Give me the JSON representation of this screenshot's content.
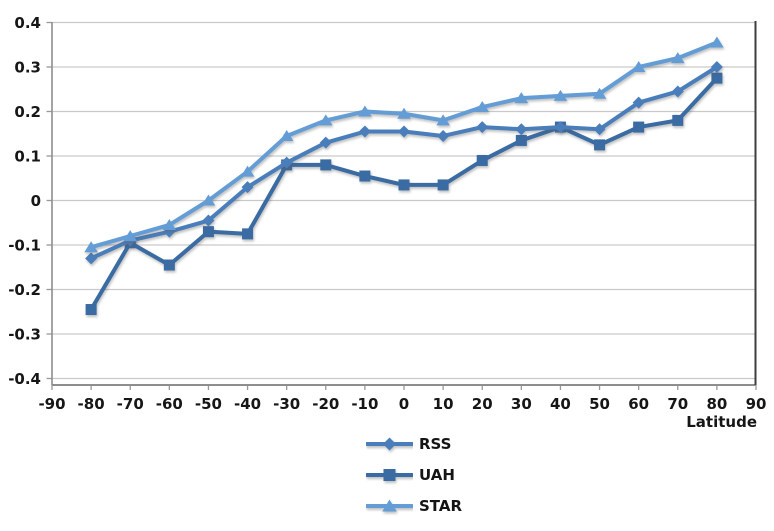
{
  "chart_data": {
    "type": "line",
    "title": "",
    "xlabel": "Latitude",
    "ylabel": "",
    "xlim": [
      -90,
      90
    ],
    "ylim": [
      -0.4,
      0.4
    ],
    "grid": "horizontal",
    "legend_position": "bottom-center",
    "x_ticks": [
      -90,
      -80,
      -70,
      -60,
      -50,
      -40,
      -30,
      -20,
      -10,
      0,
      10,
      20,
      30,
      40,
      50,
      60,
      70,
      80,
      90
    ],
    "y_ticks": [
      0.4,
      0.3,
      0.2,
      0.1,
      0,
      -0.1,
      -0.2,
      -0.3,
      -0.4
    ],
    "x": [
      -80,
      -70,
      -60,
      -50,
      -40,
      -30,
      -20,
      -10,
      0,
      10,
      20,
      30,
      40,
      50,
      60,
      70,
      80
    ],
    "series": [
      {
        "name": "RSS",
        "marker": "diamond",
        "color": "#4A7EBB",
        "values": [
          -0.13,
          -0.09,
          -0.07,
          -0.045,
          0.03,
          0.085,
          0.13,
          0.155,
          0.155,
          0.145,
          0.165,
          0.16,
          0.165,
          0.16,
          0.22,
          0.245,
          0.3
        ]
      },
      {
        "name": "UAH",
        "marker": "square",
        "color": "#3A6BA3",
        "values": [
          -0.245,
          -0.095,
          -0.145,
          -0.07,
          -0.075,
          0.08,
          0.08,
          0.055,
          0.035,
          0.035,
          0.09,
          0.135,
          0.165,
          0.125,
          0.165,
          0.18,
          0.275
        ]
      },
      {
        "name": "STAR",
        "marker": "triangle",
        "color": "#649DD6",
        "values": [
          -0.105,
          -0.08,
          -0.055,
          0.0,
          0.065,
          0.145,
          0.18,
          0.2,
          0.195,
          0.18,
          0.21,
          0.23,
          0.235,
          0.24,
          0.3,
          0.32,
          0.355
        ]
      }
    ],
    "colors": {
      "gridline": "#C9C9C9",
      "axis": "#8E8E8E",
      "plot_right_border": "#3E3E3E",
      "tick_mark": "#999999",
      "label": "#161616",
      "background": "#FFFFFF"
    }
  }
}
